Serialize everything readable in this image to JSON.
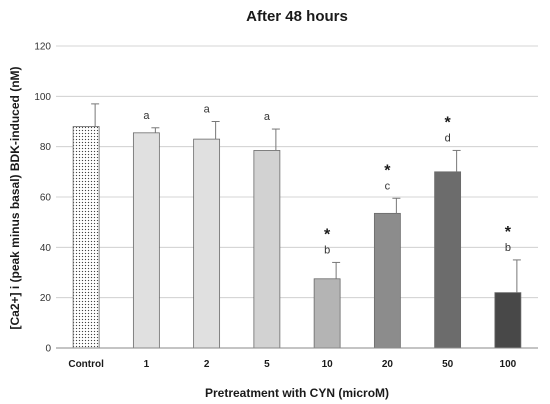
{
  "chart_data": {
    "type": "bar",
    "title": "After 48 hours",
    "xlabel": "Pretreatment with CYN (microM)",
    "ylabel": "[Ca2+] i (peak minus basal) BDK-induced (nM)",
    "ylim": [
      0,
      120
    ],
    "yticks": [
      0,
      20,
      40,
      60,
      80,
      100,
      120
    ],
    "grid": true,
    "categories": [
      "Control",
      "1",
      "2",
      "5",
      "10",
      "20",
      "50",
      "100"
    ],
    "values": [
      88,
      85.5,
      83,
      78.5,
      27.5,
      53.5,
      70,
      22
    ],
    "errors": [
      9,
      2,
      7,
      8.5,
      6.5,
      6,
      8.5,
      13
    ],
    "letters": [
      "",
      "a",
      "a",
      "a",
      "b",
      "c",
      "d",
      "b"
    ],
    "significant": [
      false,
      false,
      false,
      false,
      true,
      true,
      true,
      true
    ],
    "significance_mark": "*",
    "colors": [
      "#ffffff",
      "#e0e0e0",
      "#e0e0e0",
      "#d2d2d2",
      "#b4b4b4",
      "#8c8c8c",
      "#6c6c6c",
      "#484848"
    ]
  }
}
